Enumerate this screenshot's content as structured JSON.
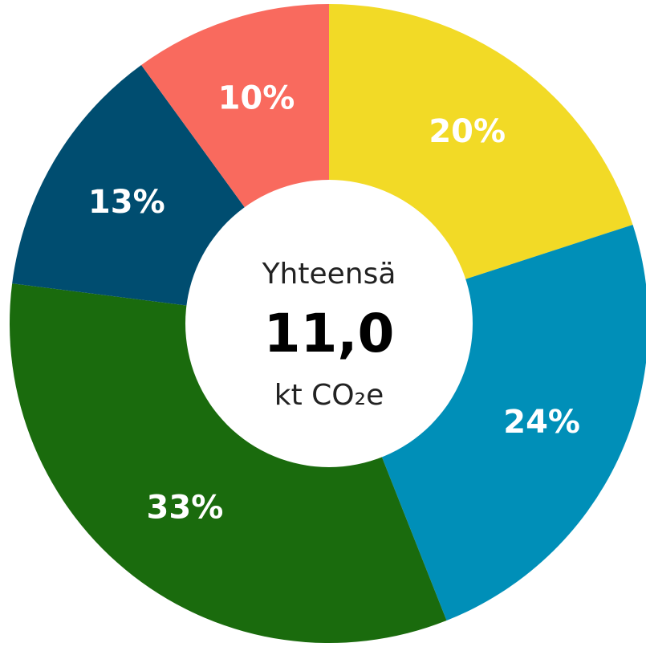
{
  "chart_data": {
    "type": "donut",
    "categories": [
      null,
      null,
      null,
      null,
      null
    ],
    "values": [
      20,
      24,
      33,
      13,
      10
    ],
    "value_labels": [
      "20%",
      "24%",
      "33%",
      "13%",
      "10%"
    ],
    "colors": [
      "#f2da26",
      "#008fb8",
      "#1a6b0d",
      "#004d70",
      "#f96a5e"
    ],
    "center_label": "Yhteensä",
    "center_value": "11,0",
    "center_unit": "kt CO₂e"
  }
}
